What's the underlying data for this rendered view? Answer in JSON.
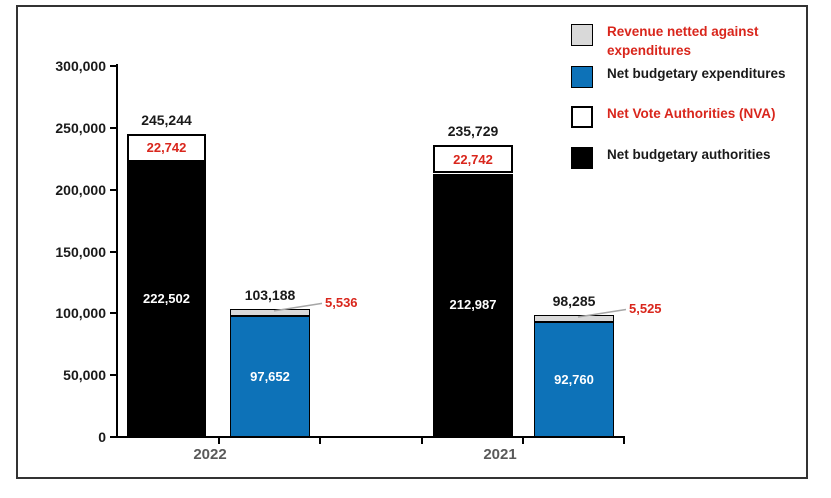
{
  "chart_data": {
    "type": "bar",
    "subtype": "grouped stacked columns",
    "title": "",
    "xlabel": "",
    "ylabel": "",
    "categories": [
      "2022",
      "2021"
    ],
    "y_axis": {
      "min": 0,
      "max": 300000,
      "tick_interval": 50000,
      "ticks": [
        {
          "value": 0,
          "label": "0"
        },
        {
          "value": 50000,
          "label": "50,000"
        },
        {
          "value": 100000,
          "label": "100,000"
        },
        {
          "value": 150000,
          "label": "150,000"
        },
        {
          "value": 200000,
          "label": "200,000"
        },
        {
          "value": 250000,
          "label": "250,000"
        },
        {
          "value": 300000,
          "label": "300,000"
        }
      ]
    },
    "colors": {
      "revenue_netted": "#d9d9d9",
      "net_budgetary_expenditures": "#0d72b8",
      "net_vote_authorities": "#ffffff",
      "net_budgetary_authorities": "#000000",
      "red_text": "#d9261c",
      "black_text": "#1a1a1a",
      "category_text": "#595959",
      "leader_line": "#a6a6a6"
    },
    "legend": {
      "position": "top-right",
      "items": [
        {
          "label": "Revenue netted against expenditures",
          "swatch_color": "#d9d9d9",
          "text_color": "#d9261c"
        },
        {
          "label": "Net budgetary expenditures",
          "swatch_color": "#0d72b8",
          "text_color": "#1a1a1a"
        },
        {
          "label": "Net Vote Authorities (NVA)",
          "swatch_color": "#ffffff",
          "text_color": "#d9261c"
        },
        {
          "label": "Net budgetary authorities",
          "swatch_color": "#000000",
          "text_color": "#1a1a1a"
        }
      ]
    },
    "groups": [
      {
        "category": "2022",
        "bars": [
          {
            "name": "authorities",
            "total": 245244,
            "total_label": "245,244",
            "segments": [
              {
                "series": "Net budgetary authorities",
                "value": 222502,
                "display": "222,502",
                "color": "#000000",
                "text_color": "#ffffff",
                "placement": "inside"
              },
              {
                "series": "Net Vote Authorities (NVA)",
                "value": 22742,
                "display": "22,742",
                "color": "#ffffff",
                "text_color": "#d9261c",
                "placement": "inside"
              }
            ]
          },
          {
            "name": "expenditures",
            "total": 103188,
            "total_label": "103,188",
            "segments": [
              {
                "series": "Net budgetary expenditures",
                "value": 97652,
                "display": "97,652",
                "color": "#0d72b8",
                "text_color": "#ffffff",
                "placement": "inside"
              },
              {
                "series": "Revenue netted against expenditures",
                "value": 5536,
                "display": "5,536",
                "color": "#d9d9d9",
                "text_color": "#d9261c",
                "placement": "callout"
              }
            ]
          }
        ]
      },
      {
        "category": "2021",
        "bars": [
          {
            "name": "authorities",
            "total": 235729,
            "total_label": "235,729",
            "segments": [
              {
                "series": "Net budgetary authorities",
                "value": 212987,
                "display": "212,987",
                "color": "#000000",
                "text_color": "#ffffff",
                "placement": "inside"
              },
              {
                "series": "Net Vote Authorities (NVA)",
                "value": 22742,
                "display": "22,742",
                "color": "#ffffff",
                "text_color": "#d9261c",
                "placement": "inside"
              }
            ]
          },
          {
            "name": "expenditures",
            "total": 98285,
            "total_label": "98,285",
            "segments": [
              {
                "series": "Net budgetary expenditures",
                "value": 92760,
                "display": "92,760",
                "color": "#0d72b8",
                "text_color": "#ffffff",
                "placement": "inside"
              },
              {
                "series": "Revenue netted against expenditures",
                "value": 5525,
                "display": "5,525",
                "color": "#d9d9d9",
                "text_color": "#d9261c",
                "placement": "callout"
              }
            ]
          }
        ]
      }
    ]
  }
}
